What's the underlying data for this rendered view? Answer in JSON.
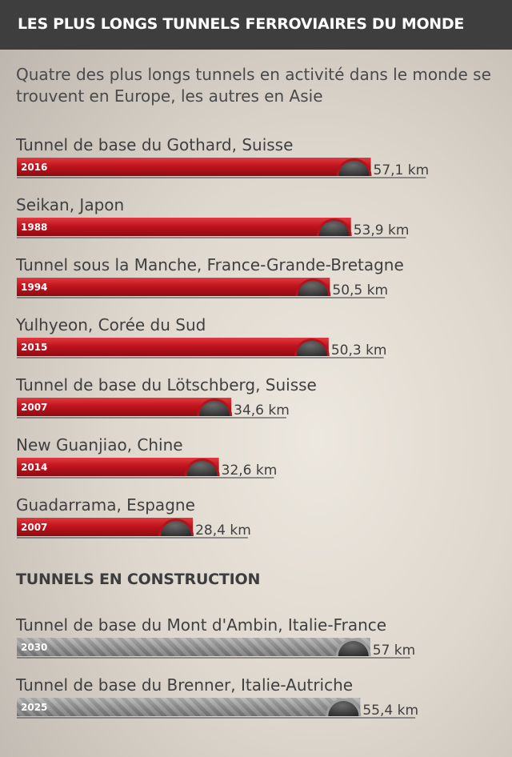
{
  "header": {
    "title": "LES PLUS LONGS TUNNELS FERROVIAIRES DU MONDE"
  },
  "subtitle": "Quatre des plus longs tunnels en activité dans le monde se trouvent en Europe, les autres en Asie",
  "construction_title": "TUNNELS EN CONSTRUCTION",
  "colors": {
    "active_bar": "#c0141e",
    "construction_bar": "#9a9a9a",
    "header_bg": "#3e3e3e"
  },
  "chart_data": [
    {
      "type": "bar",
      "orientation": "horizontal",
      "title": "",
      "categories": [
        "Tunnel de base du Gothard, Suisse",
        "Seikan, Japon",
        "Tunnel sous la Manche, France-Grande-Bretagne",
        "Yulhyeon, Corée du Sud",
        "Tunnel de base du Lötschberg, Suisse",
        "New Guanjiao, Chine",
        "Guadarrama, Espagne"
      ],
      "values": [
        57.1,
        53.9,
        50.5,
        50.3,
        34.6,
        32.6,
        28.4
      ],
      "years": [
        "2016",
        "1988",
        "1994",
        "2015",
        "2007",
        "2014",
        "2007"
      ],
      "value_labels": [
        "57,1 km",
        "53,9 km",
        "50,5 km",
        "50,3 km",
        "34,6 km",
        "32,6 km",
        "28,4 km"
      ],
      "unit": "km"
    },
    {
      "type": "bar",
      "orientation": "horizontal",
      "title": "TUNNELS EN CONSTRUCTION",
      "categories": [
        "Tunnel de base du Mont d'Ambin, Italie-France",
        "Tunnel de base du Brenner, Italie-Autriche"
      ],
      "values": [
        57,
        55.4
      ],
      "years": [
        "2030",
        "2025"
      ],
      "value_labels": [
        "57 km",
        "55,4 km"
      ],
      "unit": "km"
    }
  ]
}
